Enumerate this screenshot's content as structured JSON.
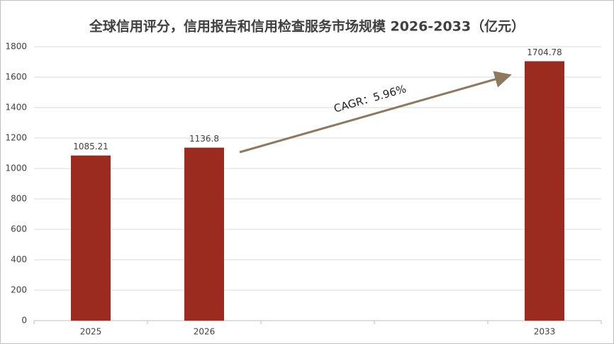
{
  "chart_data": {
    "type": "bar",
    "title": "全球信用评分，信用报告和信用检查服务市场规模 2026-2033（亿元）",
    "categories": [
      "2025",
      "2026",
      null,
      null,
      "2033"
    ],
    "values": [
      1085.21,
      1136.8,
      null,
      null,
      1704.78
    ],
    "color": "#9b2b1f",
    "ylim": [
      0,
      1800
    ],
    "yticks": [
      0,
      200,
      400,
      600,
      800,
      1000,
      1200,
      1400,
      1600,
      1800
    ],
    "grid": true,
    "annotation": "CAGR：5.96%"
  }
}
